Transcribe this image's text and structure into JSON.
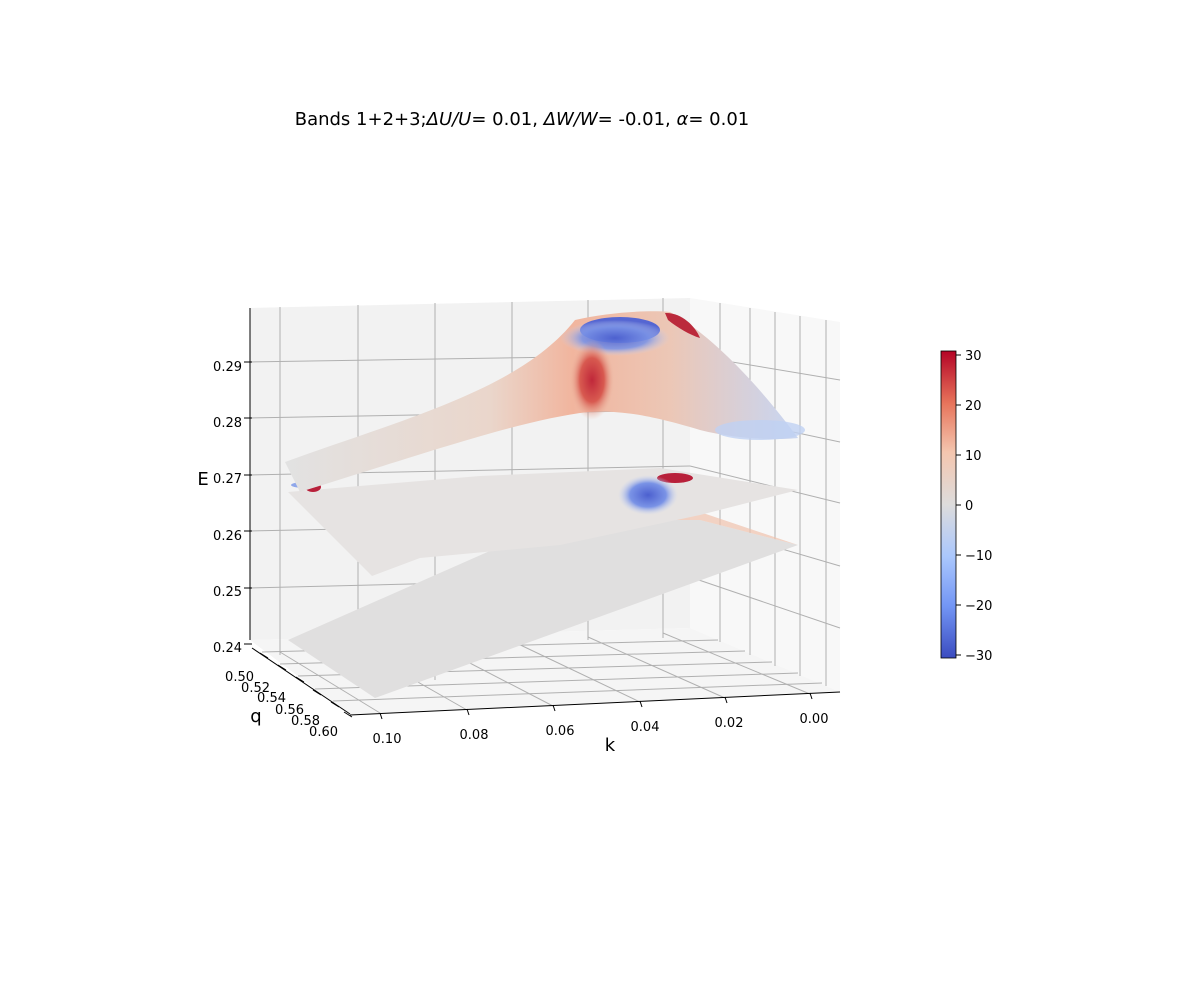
{
  "chart_data": {
    "type": "surface3d",
    "title_parts": {
      "prefix": "Bands 1+2+3;",
      "du_sym": "ΔU/U",
      "du_val": "= 0.01, ",
      "dw_sym": "ΔW/W",
      "dw_val": "= -0.01, ",
      "alpha_sym": "α",
      "alpha_val": "= 0.01"
    },
    "xlabel": "k",
    "ylabel": "q",
    "zlabel": "E",
    "k_ticks": [
      "0.10",
      "0.08",
      "0.06",
      "0.04",
      "0.02",
      "0.00"
    ],
    "q_ticks": [
      "0.50",
      "0.52",
      "0.54",
      "0.56",
      "0.58",
      "0.60"
    ],
    "E_ticks": [
      "0.29",
      "0.28",
      "0.27",
      "0.26",
      "0.25",
      "0.24"
    ],
    "klim": [
      0.0,
      0.1
    ],
    "qlim": [
      0.5,
      0.6
    ],
    "Elim": [
      0.24,
      0.29
    ],
    "colorbar": {
      "ticks": [
        "30",
        "20",
        "10",
        "0",
        "−10",
        "−20",
        "−30"
      ],
      "range": [
        -30,
        30
      ],
      "colormap": "coolwarm",
      "low_color": "#3b4cc0",
      "mid_color": "#dddddd",
      "high_color": "#b40426"
    },
    "grid": true
  }
}
